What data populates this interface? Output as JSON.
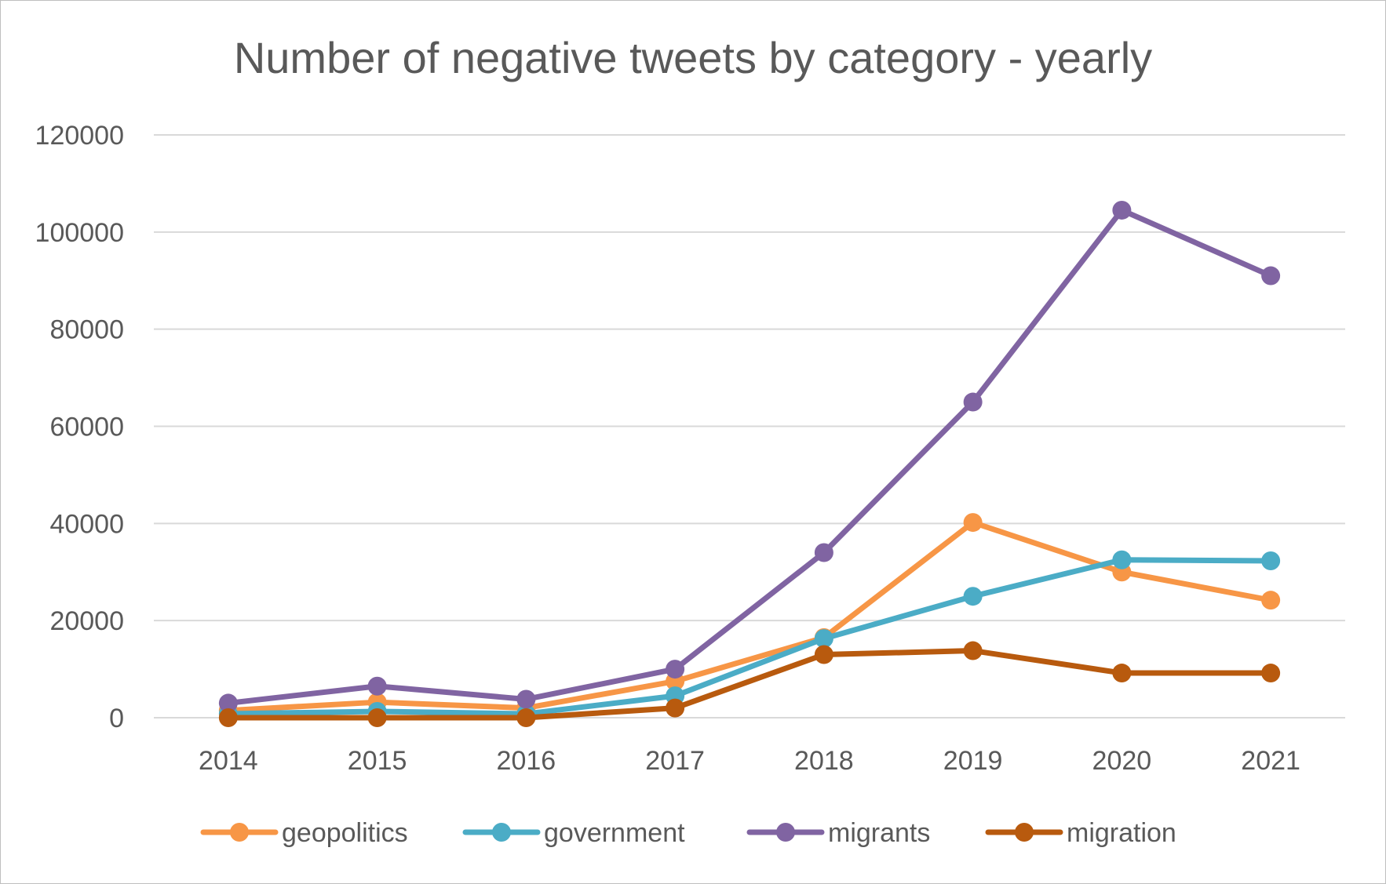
{
  "chart_data": {
    "type": "line",
    "title": "Number of negative tweets by category - yearly",
    "xlabel": "",
    "ylabel": "",
    "categories": [
      "2014",
      "2015",
      "2016",
      "2017",
      "2018",
      "2019",
      "2020",
      "2021"
    ],
    "ylim": [
      0,
      120000
    ],
    "yticks": [
      "0",
      "20000",
      "40000",
      "60000",
      "80000",
      "100000",
      "120000"
    ],
    "grid": true,
    "legend_position": "bottom",
    "series": [
      {
        "name": "geopolitics",
        "color": "#F79646",
        "values": [
          1500,
          3200,
          2000,
          7500,
          16500,
          40200,
          30000,
          24200
        ]
      },
      {
        "name": "government",
        "color": "#4BACC6",
        "values": [
          800,
          1300,
          800,
          4500,
          16300,
          25000,
          32500,
          32300
        ]
      },
      {
        "name": "migrants",
        "color": "#8064A2",
        "values": [
          3000,
          6500,
          3800,
          10000,
          34000,
          65000,
          104500,
          91000
        ]
      },
      {
        "name": "migration",
        "color": "#B85A0E",
        "values": [
          0,
          0,
          0,
          2000,
          13000,
          13800,
          9200,
          9200
        ]
      }
    ]
  }
}
